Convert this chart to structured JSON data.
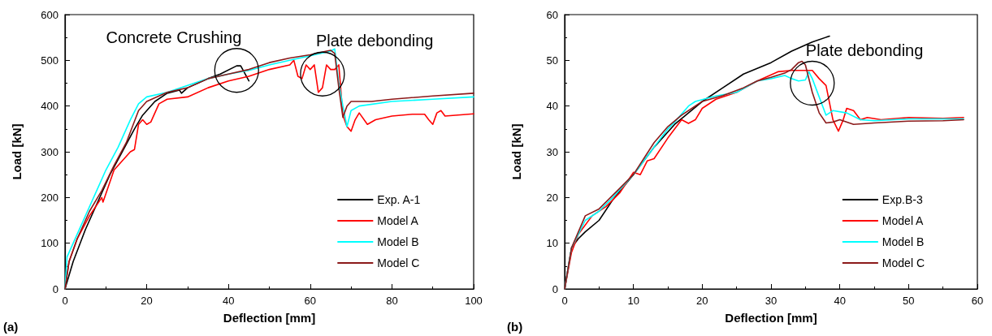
{
  "chart_data": [
    {
      "type": "line",
      "xlabel": "Deflection [mm]",
      "ylabel": "Load [kN]",
      "xlim": [
        0,
        100
      ],
      "ylim": [
        0,
        600
      ],
      "xticks": [
        0,
        20,
        40,
        60,
        80,
        100
      ],
      "yticks": [
        0,
        100,
        200,
        300,
        400,
        500,
        600
      ],
      "grid": false,
      "legend": "bottom right",
      "marker": "none",
      "line_style": "solid",
      "annotations": [
        "(a)",
        {
          "text": "Concrete Crushing",
          "x": 42,
          "y": 478
        },
        {
          "text": "Plate debonding",
          "x": 63,
          "y": 470
        }
      ],
      "series": [
        {
          "name": "Exp. A-1",
          "color": "#000000",
          "x": [
            0,
            2,
            5,
            8,
            11,
            14,
            17,
            19,
            22,
            25,
            28,
            28.5,
            30,
            35,
            38,
            42,
            43,
            45
          ],
          "values": [
            0,
            60,
            130,
            190,
            250,
            300,
            350,
            380,
            410,
            428,
            435,
            428,
            440,
            460,
            470,
            488,
            488,
            455
          ]
        },
        {
          "name": "Model A",
          "color": "#ff0000",
          "x": [
            0,
            1,
            3,
            6,
            9,
            9.3,
            12,
            14,
            16,
            17,
            18,
            19,
            20,
            21,
            23,
            25,
            30,
            35,
            40,
            45,
            50,
            55,
            56,
            57,
            58,
            59,
            60,
            61,
            62,
            63,
            64,
            65,
            66,
            67,
            68,
            69,
            70,
            71,
            72,
            74,
            76,
            80,
            85,
            88,
            89,
            90,
            91,
            92,
            93,
            100
          ],
          "values": [
            0,
            60,
            110,
            160,
            200,
            190,
            260,
            280,
            300,
            305,
            360,
            370,
            360,
            365,
            405,
            415,
            420,
            440,
            455,
            465,
            480,
            490,
            500,
            465,
            460,
            490,
            480,
            490,
            430,
            440,
            490,
            480,
            480,
            490,
            380,
            355,
            345,
            370,
            385,
            360,
            370,
            378,
            382,
            382,
            370,
            360,
            385,
            390,
            378,
            383
          ]
        },
        {
          "name": "Model B",
          "color": "#00ffff",
          "x": [
            0,
            0.5,
            2,
            5,
            8,
            10,
            13,
            16,
            18,
            20,
            25,
            30,
            35,
            40,
            45,
            50,
            55,
            60,
            65,
            66,
            67,
            68,
            69,
            70,
            72,
            80,
            90,
            100
          ],
          "values": [
            0,
            70,
            100,
            160,
            220,
            260,
            310,
            370,
            405,
            420,
            430,
            445,
            460,
            470,
            478,
            490,
            500,
            510,
            520,
            525,
            450,
            400,
            355,
            390,
            400,
            410,
            415,
            420
          ]
        },
        {
          "name": "Model C",
          "color": "#8b1a1a",
          "x": [
            0,
            1,
            3,
            6,
            9,
            12,
            15,
            18,
            20,
            25,
            30,
            35,
            40,
            45,
            50,
            55,
            60,
            64,
            65,
            66,
            67,
            68,
            69,
            70,
            75,
            80,
            90,
            100
          ],
          "values": [
            0,
            60,
            110,
            170,
            215,
            270,
            320,
            390,
            410,
            430,
            440,
            460,
            470,
            480,
            495,
            505,
            512,
            520,
            522,
            515,
            440,
            375,
            400,
            410,
            410,
            415,
            422,
            428
          ]
        }
      ]
    },
    {
      "type": "line",
      "xlabel": "Deflection [mm]",
      "ylabel": "Load [kN]",
      "xlim": [
        0,
        60
      ],
      "ylim": [
        0,
        60
      ],
      "xticks": [
        0,
        10,
        20,
        30,
        40,
        50,
        60
      ],
      "yticks": [
        0,
        10,
        20,
        30,
        40,
        50,
        60
      ],
      "grid": false,
      "legend": "bottom right",
      "marker": "none",
      "line_style": "solid",
      "annotations": [
        "(b)",
        {
          "text": "Plate debonding",
          "x": 36,
          "y": 45
        }
      ],
      "series": [
        {
          "name": "Exp.B-3",
          "color": "#000000",
          "x": [
            0,
            1,
            2,
            3,
            5,
            7,
            10,
            13,
            16,
            20,
            23,
            26,
            30,
            33,
            36,
            38.5
          ],
          "values": [
            0,
            9,
            11,
            12.5,
            15,
            19.5,
            25,
            31,
            36,
            41,
            44,
            47,
            49.5,
            52,
            54,
            55.3
          ]
        },
        {
          "name": "Model A",
          "color": "#ff0000",
          "x": [
            0,
            1,
            2,
            4,
            6,
            8,
            10,
            11,
            12,
            13,
            15,
            16,
            17,
            18,
            19,
            20,
            22,
            25,
            28,
            31,
            33,
            36,
            37,
            38,
            39,
            39.8,
            40.5,
            41,
            42,
            43,
            44,
            46,
            50,
            55,
            58
          ],
          "values": [
            0,
            8,
            12,
            16,
            18,
            21,
            25.5,
            25,
            28,
            28.5,
            33,
            35,
            37,
            36.2,
            37,
            39.5,
            41.5,
            43,
            45.5,
            47.5,
            47.8,
            47.8,
            46,
            44.5,
            37,
            34.5,
            37,
            39.5,
            39,
            37,
            37.5,
            37,
            37.5,
            37.3,
            37.5
          ]
        },
        {
          "name": "Model B",
          "color": "#00ffff",
          "x": [
            0,
            1,
            2,
            3,
            5,
            7,
            10,
            13,
            15,
            16,
            18,
            19,
            22,
            25,
            28,
            30,
            32,
            33,
            34,
            35,
            35.5,
            36,
            37,
            38,
            39,
            41,
            43,
            45,
            50,
            58
          ],
          "values": [
            0,
            9,
            12,
            15,
            17,
            20,
            25,
            31,
            35,
            36.5,
            40,
            41,
            42.2,
            43,
            45.5,
            46,
            46.7,
            46,
            45.5,
            45.7,
            47.5,
            46,
            42,
            38,
            39,
            38.5,
            37,
            36.8,
            37.2,
            37.2
          ]
        },
        {
          "name": "Model C",
          "color": "#8b1a1a",
          "x": [
            0,
            1,
            2,
            3,
            5,
            8,
            10,
            13,
            15,
            17,
            20,
            23,
            26,
            28,
            30,
            32,
            33,
            34,
            34.5,
            35,
            36,
            37,
            38,
            39,
            40,
            42,
            45,
            50,
            55,
            58
          ],
          "values": [
            0,
            9,
            12.5,
            16,
            17.5,
            22,
            25,
            32,
            35.5,
            38,
            41,
            42.3,
            44,
            45.5,
            46.3,
            47.2,
            48,
            49.5,
            49.8,
            49,
            43,
            38.5,
            36.3,
            36.5,
            37,
            36,
            36.3,
            36.7,
            36.8,
            37
          ]
        }
      ]
    }
  ]
}
